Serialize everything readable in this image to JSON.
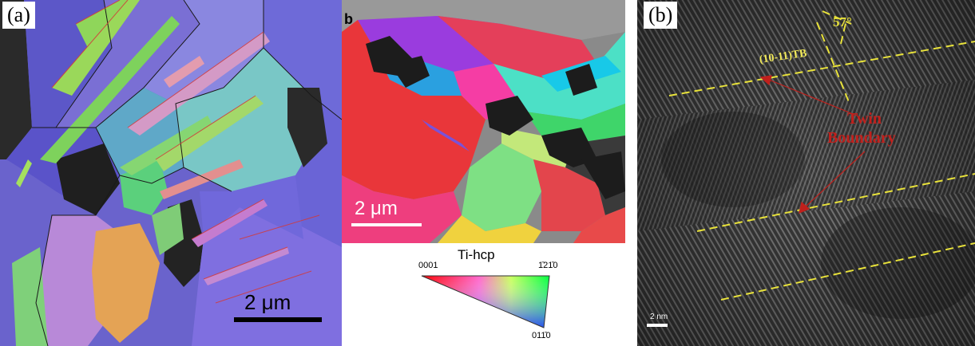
{
  "panel_a": {
    "tag": "(a)",
    "scale_bar": "2 μm"
  },
  "panel_b_ebsd": {
    "tag": "b",
    "scale_bar": "2 μm"
  },
  "ipf_legend": {
    "title": "Ti-hcp",
    "corner_left": "0001",
    "corner_right": "1̄21̄0",
    "corner_bottom": "011̄0"
  },
  "panel_b_tem": {
    "tag": "(b)",
    "angle_label": "57°",
    "tb_label": "(10-11)TB",
    "twin_label_line1": "Twin",
    "twin_label_line2": "Boundary",
    "scale_bar": "2 nm"
  },
  "colors": {
    "annotation_red": "#c0201c",
    "dashed_yellow": "#e8e23a",
    "tb_label_yellow": "#f2ea5a"
  }
}
